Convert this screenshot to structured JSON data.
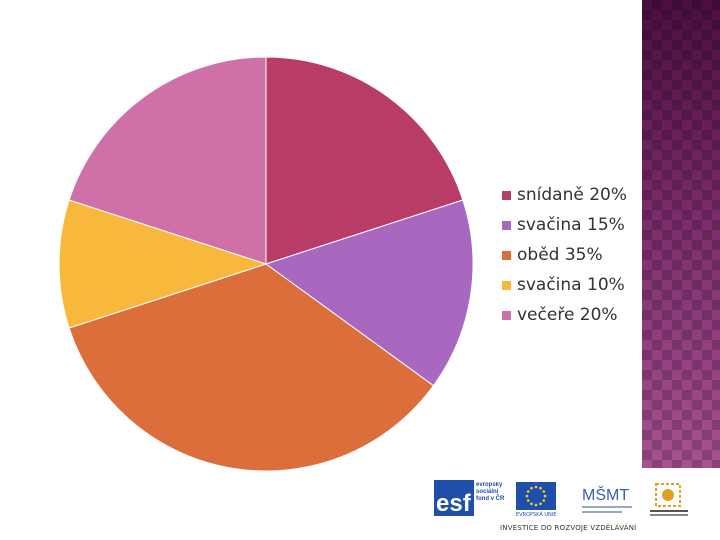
{
  "chart_data": {
    "type": "pie",
    "slices": [
      {
        "label": "snídaně 20%",
        "value": 20,
        "color": "#b83b68"
      },
      {
        "label": "svačina 15%",
        "value": 15,
        "color": "#a868c0"
      },
      {
        "label": "oběd 35%",
        "value": 35,
        "color": "#dc6e3c"
      },
      {
        "label": "svačina 10%",
        "value": 10,
        "color": "#f8b83c"
      },
      {
        "label": "večeře 20%",
        "value": 20,
        "color": "#d070a8"
      }
    ],
    "start": "12 o'clock, clockwise",
    "legend_position": "right",
    "title": ""
  },
  "footer": {
    "esf_text": "evropský sociální fond v ČR",
    "esf_letters": "esf",
    "eu_caption": "EVROPSKÁ UNIE",
    "msmt_letters": "MŠMT",
    "tagline": "INVESTICE DO ROZVOJE VZDĚLÁVÁNÍ"
  },
  "colors": {
    "side_band": "#7a2a6a",
    "esf_blue": "#1f4fa8",
    "eu_star": "#f8d020"
  }
}
